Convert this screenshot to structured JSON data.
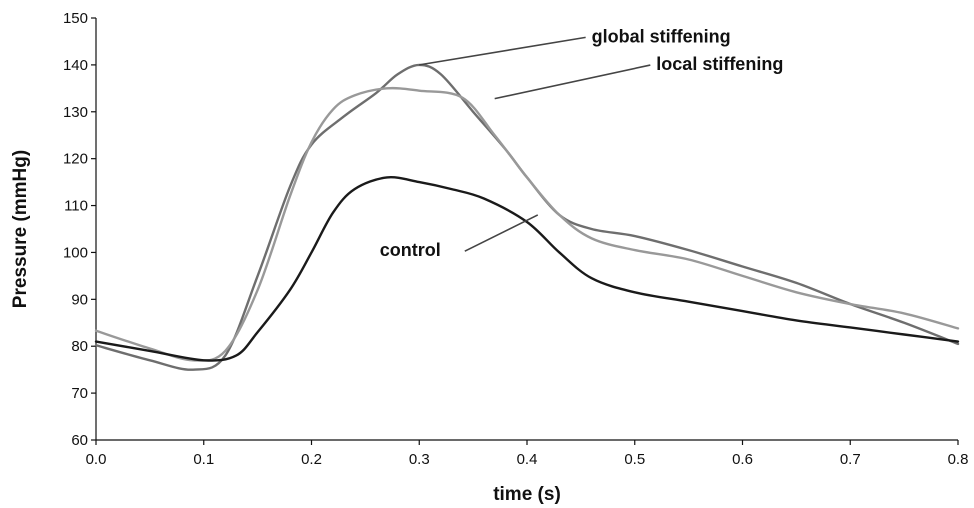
{
  "chart_data": {
    "type": "line",
    "title": "",
    "xlabel": "time (s)",
    "ylabel": "Pressure (mmHg)",
    "xlim": [
      0.0,
      0.8
    ],
    "ylim": [
      60,
      150
    ],
    "xticks": [
      "0.0",
      "0.1",
      "0.2",
      "0.3",
      "0.4",
      "0.5",
      "0.6",
      "0.7",
      "0.8"
    ],
    "yticks": [
      "60",
      "70",
      "80",
      "90",
      "100",
      "110",
      "120",
      "130",
      "140",
      "150"
    ],
    "grid": false,
    "legend": "none",
    "series": [
      {
        "name": "global stiffening",
        "color": "#6e6e6e",
        "x": [
          0.0,
          0.05,
          0.09,
          0.12,
          0.15,
          0.18,
          0.2,
          0.23,
          0.26,
          0.28,
          0.3,
          0.32,
          0.35,
          0.38,
          0.4,
          0.43,
          0.46,
          0.5,
          0.55,
          0.6,
          0.65,
          0.7,
          0.75,
          0.8
        ],
        "y": [
          80.2,
          77.0,
          75.0,
          78.0,
          95.0,
          114.0,
          123.0,
          129.0,
          134.0,
          138.0,
          140.0,
          138.0,
          130.0,
          122.0,
          116.0,
          108.0,
          105.0,
          103.5,
          100.5,
          97.0,
          93.5,
          89.0,
          85.0,
          80.5
        ]
      },
      {
        "name": "local stiffening",
        "color": "#999999",
        "x": [
          0.0,
          0.05,
          0.09,
          0.12,
          0.15,
          0.18,
          0.2,
          0.22,
          0.24,
          0.27,
          0.3,
          0.34,
          0.37,
          0.4,
          0.43,
          0.46,
          0.5,
          0.55,
          0.6,
          0.65,
          0.7,
          0.75,
          0.8
        ],
        "y": [
          83.3,
          79.5,
          77.0,
          79.0,
          92.0,
          112.0,
          123.5,
          130.5,
          133.5,
          135.0,
          134.5,
          133.0,
          125.0,
          116.0,
          108.0,
          103.0,
          100.5,
          98.5,
          95.0,
          91.5,
          89.0,
          87.0,
          83.8
        ]
      },
      {
        "name": "control",
        "color": "#1a1a1a",
        "x": [
          0.0,
          0.05,
          0.1,
          0.13,
          0.15,
          0.18,
          0.2,
          0.22,
          0.24,
          0.27,
          0.3,
          0.33,
          0.36,
          0.4,
          0.43,
          0.46,
          0.5,
          0.55,
          0.6,
          0.65,
          0.7,
          0.75,
          0.8
        ],
        "y": [
          81.0,
          79.0,
          77.0,
          78.0,
          83.0,
          92.0,
          100.0,
          108.5,
          113.5,
          116.0,
          115.0,
          113.5,
          111.5,
          106.5,
          100.0,
          94.5,
          91.5,
          89.5,
          87.5,
          85.5,
          84.0,
          82.5,
          81.0
        ]
      }
    ],
    "annotations": [
      {
        "text": "global stiffening",
        "series": 0,
        "anchor_x": 0.3,
        "anchor_y": 140.0,
        "label_x": 0.46,
        "label_y": 144.8
      },
      {
        "text": "local stiffening",
        "series": 1,
        "anchor_x": 0.37,
        "anchor_y": 132.8,
        "label_x": 0.52,
        "label_y": 138.9
      },
      {
        "text": "control",
        "series": 2,
        "anchor_x": 0.41,
        "anchor_y": 108.0,
        "label_x": 0.32,
        "label_y": 99.2
      }
    ]
  }
}
